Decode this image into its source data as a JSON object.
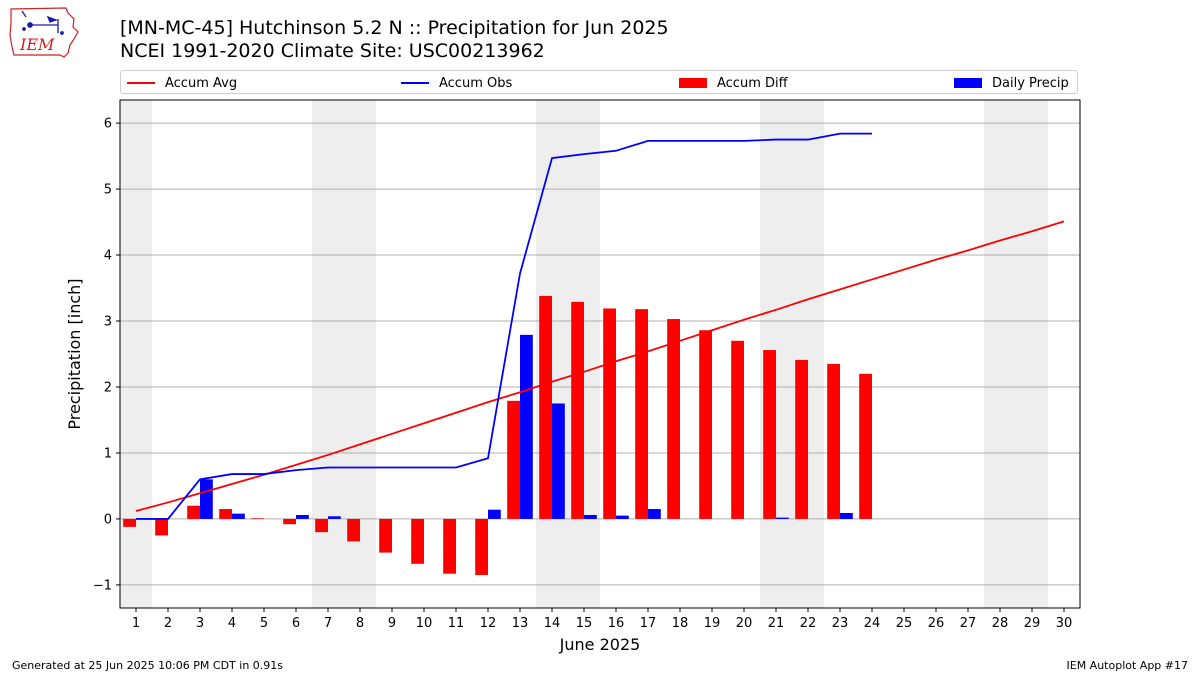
{
  "header": {
    "logo_text": "IEM",
    "title_line1": "[MN-MC-45] Hutchinson 5.2 N :: Precipitation for Jun 2025",
    "title_line2": "NCEI 1991-2020 Climate Site: USC00213962"
  },
  "footer": {
    "generated": "Generated at 25 Jun 2025 10:06 PM CDT in 0.91s",
    "app": "IEM Autoplot App #17"
  },
  "chart_data": {
    "type": "bar",
    "xlabel": "June 2025",
    "ylabel": "Precipitation [inch]",
    "xlim": [
      0.5,
      30.5
    ],
    "ylim": [
      -1.35,
      6.35
    ],
    "yticks": [
      -1,
      0,
      1,
      2,
      3,
      4,
      5,
      6
    ],
    "ytick_labels": [
      "−1",
      "0",
      "1",
      "2",
      "3",
      "4",
      "5",
      "6"
    ],
    "categories": [
      "1",
      "2",
      "3",
      "4",
      "5",
      "6",
      "7",
      "8",
      "9",
      "10",
      "11",
      "12",
      "13",
      "14",
      "15",
      "16",
      "17",
      "18",
      "19",
      "20",
      "21",
      "22",
      "23",
      "24",
      "25",
      "26",
      "27",
      "28",
      "29",
      "30"
    ],
    "weekend_days": [
      1,
      7,
      8,
      14,
      15,
      21,
      22,
      28,
      29
    ],
    "grid": "horizontal",
    "legend_placement": "top",
    "series": [
      {
        "name": "Accum Avg",
        "kind": "line",
        "color": "#ff0000",
        "x": [
          1,
          2,
          3,
          4,
          5,
          6,
          7,
          8,
          9,
          10,
          11,
          12,
          13,
          14,
          15,
          16,
          17,
          18,
          19,
          20,
          21,
          22,
          23,
          24,
          25,
          26,
          27,
          28,
          29,
          30
        ],
        "values": [
          0.12,
          0.25,
          0.39,
          0.53,
          0.67,
          0.82,
          0.97,
          1.13,
          1.29,
          1.45,
          1.61,
          1.77,
          1.92,
          2.08,
          2.23,
          2.39,
          2.54,
          2.7,
          2.86,
          3.02,
          3.17,
          3.33,
          3.48,
          3.63,
          3.78,
          3.93,
          4.07,
          4.22,
          4.36,
          4.51
        ]
      },
      {
        "name": "Accum Obs",
        "kind": "line",
        "color": "#0000ff",
        "x": [
          1,
          2,
          3,
          4,
          5,
          6,
          7,
          8,
          9,
          10,
          11,
          12,
          13,
          14,
          15,
          16,
          17,
          18,
          19,
          20,
          21,
          22,
          23,
          24
        ],
        "values": [
          0,
          0,
          0.6,
          0.68,
          0.68,
          0.74,
          0.78,
          0.78,
          0.78,
          0.78,
          0.78,
          0.92,
          3.72,
          5.47,
          5.53,
          5.58,
          5.73,
          5.73,
          5.73,
          5.73,
          5.75,
          5.75,
          5.84,
          5.84
        ]
      },
      {
        "name": "Accum Diff",
        "kind": "bar",
        "color": "#ff0000",
        "x": [
          1,
          2,
          3,
          4,
          5,
          6,
          7,
          8,
          9,
          10,
          11,
          12,
          13,
          14,
          15,
          16,
          17,
          18,
          19,
          20,
          21,
          22,
          23,
          24
        ],
        "values": [
          -0.12,
          -0.25,
          0.2,
          0.15,
          0.01,
          -0.08,
          -0.2,
          -0.34,
          -0.51,
          -0.68,
          -0.83,
          -0.85,
          1.79,
          3.38,
          3.29,
          3.19,
          3.18,
          3.03,
          2.86,
          2.7,
          2.56,
          2.41,
          2.35,
          2.2
        ]
      },
      {
        "name": "Daily Precip",
        "kind": "bar",
        "color": "#0000ff",
        "x": [
          1,
          2,
          3,
          4,
          5,
          6,
          7,
          8,
          9,
          10,
          11,
          12,
          13,
          14,
          15,
          16,
          17,
          18,
          19,
          20,
          21,
          22,
          23,
          24
        ],
        "values": [
          0,
          0,
          0.6,
          0.08,
          0,
          0.06,
          0.04,
          0,
          0,
          0,
          0,
          0.14,
          2.79,
          1.75,
          0.06,
          0.05,
          0.15,
          0,
          0,
          0,
          0.02,
          0,
          0.09,
          0
        ]
      }
    ]
  }
}
